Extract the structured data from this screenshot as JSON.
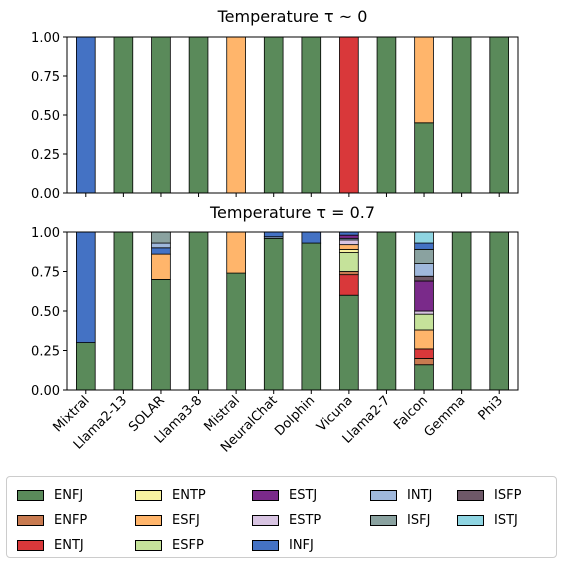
{
  "chart_data": {
    "type": "bar",
    "stacked": true,
    "normalized": true,
    "colors": {
      "ENFJ": "#5a8a5a",
      "ENFP": "#c87a50",
      "ENTJ": "#d9383a",
      "ENTP": "#f7f2a0",
      "ESFJ": "#ffb56b",
      "ESFP": "#c5e29a",
      "ESTJ": "#7a2a8a",
      "ESTP": "#d8c4e2",
      "INFJ": "#4472c4",
      "INTJ": "#9fb8dc",
      "ISFJ": "#8aa2a0",
      "ISFP": "#6e5868",
      "ISTJ": "#8fd5e2"
    },
    "legend": {
      "location": "bottom",
      "ncol": 5,
      "entries": [
        "ENFJ",
        "ENFP",
        "ENTJ",
        "ENTP",
        "ESFJ",
        "ESFP",
        "ESTJ",
        "ESTP",
        "INFJ",
        "INTJ",
        "ISFJ",
        "ISFP",
        "ISTJ"
      ]
    },
    "categories": [
      "Mixtral",
      "Llama2-13",
      "SOLAR",
      "Llama3-8",
      "Mistral",
      "NeuralChat",
      "Dolphin",
      "Vicuna",
      "Llama2-7",
      "Falcon",
      "Gemma",
      "Phi3"
    ],
    "panels": [
      {
        "title": "Temperature τ ~ 0",
        "ylim": [
          0,
          1.0
        ],
        "yticks": [
          "0.00",
          "0.25",
          "0.50",
          "0.75",
          "1.00"
        ],
        "grid": false,
        "bars": [
          [
            {
              "type": "INFJ",
              "value": 1.0
            }
          ],
          [
            {
              "type": "ENFJ",
              "value": 1.0
            }
          ],
          [
            {
              "type": "ENFJ",
              "value": 1.0
            }
          ],
          [
            {
              "type": "ENFJ",
              "value": 1.0
            }
          ],
          [
            {
              "type": "ESFJ",
              "value": 1.0
            }
          ],
          [
            {
              "type": "ENFJ",
              "value": 1.0
            }
          ],
          [
            {
              "type": "ENFJ",
              "value": 1.0
            }
          ],
          [
            {
              "type": "ENTJ",
              "value": 1.0
            }
          ],
          [
            {
              "type": "ENFJ",
              "value": 1.0
            }
          ],
          [
            {
              "type": "ENFJ",
              "value": 0.45
            },
            {
              "type": "ESFJ",
              "value": 0.55
            }
          ],
          [
            {
              "type": "ENFJ",
              "value": 1.0
            }
          ],
          [
            {
              "type": "ENFJ",
              "value": 1.0
            }
          ]
        ]
      },
      {
        "title": "Temperature τ = 0.7",
        "ylim": [
          0,
          1.0
        ],
        "yticks": [
          "0.00",
          "0.25",
          "0.50",
          "0.75",
          "1.00"
        ],
        "grid": false,
        "bars": [
          [
            {
              "type": "ENFJ",
              "value": 0.3
            },
            {
              "type": "INFJ",
              "value": 0.7
            }
          ],
          [
            {
              "type": "ENFJ",
              "value": 1.0
            }
          ],
          [
            {
              "type": "ENFJ",
              "value": 0.7
            },
            {
              "type": "ESFJ",
              "value": 0.16
            },
            {
              "type": "INFJ",
              "value": 0.04
            },
            {
              "type": "INTJ",
              "value": 0.03
            },
            {
              "type": "ISFJ",
              "value": 0.07
            }
          ],
          [
            {
              "type": "ENFJ",
              "value": 1.0
            }
          ],
          [
            {
              "type": "ENFJ",
              "value": 0.74
            },
            {
              "type": "ESFJ",
              "value": 0.26
            }
          ],
          [
            {
              "type": "ENFJ",
              "value": 0.96
            },
            {
              "type": "INTJ",
              "value": 0.01
            },
            {
              "type": "INFJ",
              "value": 0.03
            }
          ],
          [
            {
              "type": "ENFJ",
              "value": 0.93
            },
            {
              "type": "INFJ",
              "value": 0.07
            }
          ],
          [
            {
              "type": "ENFJ",
              "value": 0.6
            },
            {
              "type": "ENTJ",
              "value": 0.13
            },
            {
              "type": "ENFP",
              "value": 0.02
            },
            {
              "type": "ESFP",
              "value": 0.12
            },
            {
              "type": "ENTP",
              "value": 0.02
            },
            {
              "type": "ESFJ",
              "value": 0.03
            },
            {
              "type": "ESTP",
              "value": 0.03
            },
            {
              "type": "INTJ",
              "value": 0.01
            },
            {
              "type": "ESTJ",
              "value": 0.02
            },
            {
              "type": "INFJ",
              "value": 0.02
            }
          ],
          [
            {
              "type": "ENFJ",
              "value": 1.0
            }
          ],
          [
            {
              "type": "ENFJ",
              "value": 0.16
            },
            {
              "type": "ENFP",
              "value": 0.04
            },
            {
              "type": "ENTJ",
              "value": 0.06
            },
            {
              "type": "ESFJ",
              "value": 0.12
            },
            {
              "type": "ESFP",
              "value": 0.1
            },
            {
              "type": "ESTP",
              "value": 0.02
            },
            {
              "type": "ESTJ",
              "value": 0.19
            },
            {
              "type": "ISFP",
              "value": 0.03
            },
            {
              "type": "INTJ",
              "value": 0.08
            },
            {
              "type": "ISFJ",
              "value": 0.09
            },
            {
              "type": "INFJ",
              "value": 0.04
            },
            {
              "type": "ISTJ",
              "value": 0.07
            }
          ],
          [
            {
              "type": "ENFJ",
              "value": 1.0
            }
          ],
          [
            {
              "type": "ENFJ",
              "value": 1.0
            }
          ]
        ]
      }
    ]
  }
}
